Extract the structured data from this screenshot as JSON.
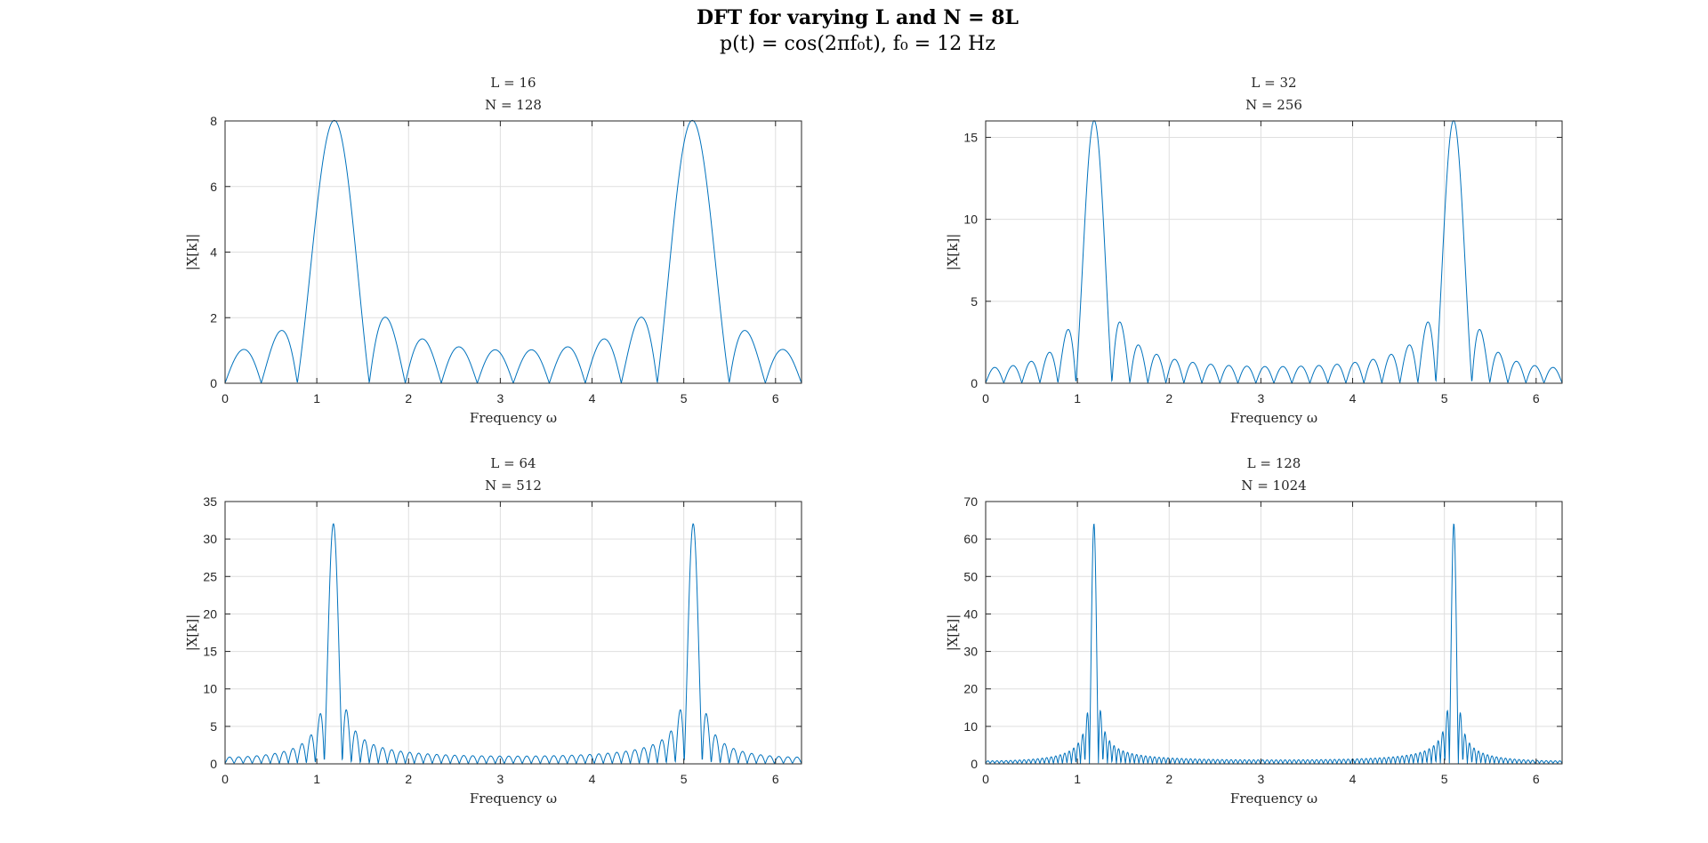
{
  "figure": {
    "title": "DFT for varying L and N = 8L",
    "subtitle": "p(t) = cos(2πf₀t), f₀ = 12 Hz"
  },
  "colors": {
    "line": "#0072BD",
    "grid": "#dfdfdf",
    "axis": "#262626"
  },
  "chart_data": [
    {
      "type": "line",
      "title": [
        "L = 16",
        "N = 128"
      ],
      "xlabel": "Frequency ω",
      "ylabel": "|X[k]|",
      "xlim": [
        0,
        6.2832
      ],
      "ylim": [
        0,
        8
      ],
      "xticks": [
        0,
        1,
        2,
        3,
        4,
        5,
        6
      ],
      "yticks": [
        0,
        2,
        4,
        6,
        8
      ],
      "grid": true,
      "L": 16,
      "N": 128,
      "peaks": [
        1.18,
        5.1
      ],
      "peak_value": 8,
      "series": [
        {
          "values_description_formula": "|X(ω)| of 16-sample cosine at ω0≈1.18, zero-padded to 128 points"
        }
      ]
    },
    {
      "type": "line",
      "title": [
        "L = 32",
        "N = 256"
      ],
      "xlabel": "Frequency ω",
      "ylabel": "|X[k]|",
      "xlim": [
        0,
        6.2832
      ],
      "ylim": [
        0,
        16
      ],
      "xticks": [
        0,
        1,
        2,
        3,
        4,
        5,
        6
      ],
      "yticks": [
        0,
        5,
        10,
        15
      ],
      "grid": true,
      "L": 32,
      "N": 256,
      "peaks": [
        1.18,
        5.1
      ],
      "peak_value": 16,
      "series": [
        {
          "values_description_formula": "|X(ω)| of 32-sample cosine at ω0≈1.18, zero-padded to 256 points"
        }
      ]
    },
    {
      "type": "line",
      "title": [
        "L = 64",
        "N = 512"
      ],
      "xlabel": "Frequency ω",
      "ylabel": "|X[k]|",
      "xlim": [
        0,
        6.2832
      ],
      "ylim": [
        0,
        35
      ],
      "xticks": [
        0,
        1,
        2,
        3,
        4,
        5,
        6
      ],
      "yticks": [
        0,
        5,
        10,
        15,
        20,
        25,
        30,
        35
      ],
      "grid": true,
      "L": 64,
      "N": 512,
      "peaks": [
        1.18,
        5.1
      ],
      "peak_value": 32,
      "series": [
        {
          "values_description_formula": "|X(ω)| of 64-sample cosine at ω0≈1.18, zero-padded to 512 points"
        }
      ]
    },
    {
      "type": "line",
      "title": [
        "L = 128",
        "N = 1024"
      ],
      "xlabel": "Frequency ω",
      "ylabel": "|X[k]|",
      "xlim": [
        0,
        6.2832
      ],
      "ylim": [
        0,
        70
      ],
      "xticks": [
        0,
        1,
        2,
        3,
        4,
        5,
        6
      ],
      "yticks": [
        0,
        10,
        20,
        30,
        40,
        50,
        60,
        70
      ],
      "grid": true,
      "L": 128,
      "N": 1024,
      "peaks": [
        1.18,
        5.1
      ],
      "peak_value": 64,
      "series": [
        {
          "values_description_formula": "|X(ω)| of 128-sample cosine at ω0≈1.18, zero-padded to 1024 points"
        }
      ]
    }
  ]
}
